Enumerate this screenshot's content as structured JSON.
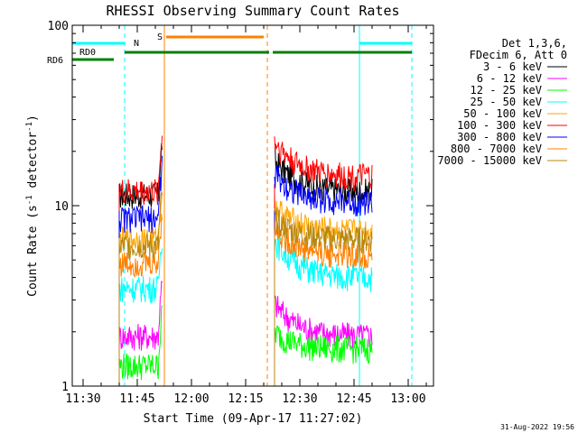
{
  "chart_data": {
    "type": "line",
    "title": "RHESSI Observing Summary Count Rates",
    "xlabel": "Start Time (09-Apr-17 11:27:02)",
    "ylabel": "Count Rate (s⁻¹ detector⁻¹)",
    "ylabel_plain": "Count Rate (s",
    "ylabel_sup1": "-1",
    "ylabel_mid": " detector",
    "ylabel_sup2": "-1",
    "ylabel_end": ")",
    "yscale": "log",
    "ylim": [
      1,
      100
    ],
    "xlim": [
      "11:27",
      "13:07"
    ],
    "x_ticks": [
      "11:30",
      "11:45",
      "12:00",
      "12:15",
      "12:30",
      "12:45",
      "13:00"
    ],
    "y_ticks": [
      "1",
      "10",
      "100"
    ],
    "footer": "31-Aug-2022 19:56",
    "legend": {
      "header1": "Det 1,3,6,",
      "header2": "FDecim 6, Att 0",
      "placement": "right, outside plot"
    },
    "series": [
      {
        "name": "3 - 6 keV",
        "color": "#000000",
        "level_seg1": 11.5,
        "level_seg2": 12.0,
        "peak_seg2": 18
      },
      {
        "name": "6 - 12 keV",
        "color": "#ff00ff",
        "level_seg1": 1.9,
        "level_seg2": 1.9,
        "peak_seg2": 2.9
      },
      {
        "name": "12 - 25 keV",
        "color": "#00ff00",
        "level_seg1": 1.3,
        "level_seg2": 1.6,
        "peak_seg2": 2.0
      },
      {
        "name": "25 - 50 keV",
        "color": "#00ffff",
        "level_seg1": 3.5,
        "level_seg2": 4.0,
        "peak_seg2": 6.5
      },
      {
        "name": "50 - 100 keV",
        "color": "#ffa500",
        "level_seg1": 6.5,
        "level_seg2": 7.2,
        "peak_seg2": 10
      },
      {
        "name": "100 - 300 keV",
        "color": "#ff0000",
        "level_seg1": 12.0,
        "level_seg2": 14.5,
        "peak_seg2": 23
      },
      {
        "name": "300 - 800 keV",
        "color": "#0000ff",
        "level_seg1": 8.5,
        "level_seg2": 10.5,
        "peak_seg2": 15
      },
      {
        "name": "800 - 7000 keV",
        "color": "#ff8000",
        "level_seg1": 4.8,
        "level_seg2": 5.3,
        "peak_seg2": 7.5
      },
      {
        "name": "7000 - 15000 keV",
        "color": "#b8860b",
        "level_seg1": 6.0,
        "level_seg2": 6.5,
        "peak_seg2": 8.5
      }
    ],
    "data_intervals": [
      {
        "start": "11:40",
        "end": "11:52"
      },
      {
        "start": "12:23",
        "end": "12:50"
      }
    ],
    "annotations": {
      "N": "N",
      "S": "S",
      "RD0": "RD0",
      "RD6": "RD6"
    },
    "event_lines": [
      {
        "label": "night (cyan)",
        "times": [
          "11:27",
          "11:41.5",
          "12:46.5",
          "13:01"
        ]
      },
      {
        "label": "SAA (orange)",
        "times": [
          "11:52.5",
          "12:21"
        ]
      }
    ],
    "flag_bars": [
      {
        "label": "night",
        "color": "#00ffff",
        "intervals": [
          [
            "11:27",
            "11:41.5"
          ],
          [
            "12:46.5",
            "13:01"
          ]
        ]
      },
      {
        "label": "SAA",
        "color": "#ff8000",
        "intervals": [
          [
            "11:53",
            "12:20"
          ]
        ]
      },
      {
        "label": "RD0",
        "color": "#008000",
        "intervals": [
          [
            "11:41.5",
            "12:21.5"
          ],
          [
            "12:22.5",
            "13:01"
          ]
        ]
      },
      {
        "label": "RD6",
        "color": "#008000",
        "intervals": [
          [
            "11:27",
            "11:38.5"
          ]
        ]
      }
    ],
    "colors": {
      "axis": "#000000",
      "background": "#ffffff"
    }
  }
}
